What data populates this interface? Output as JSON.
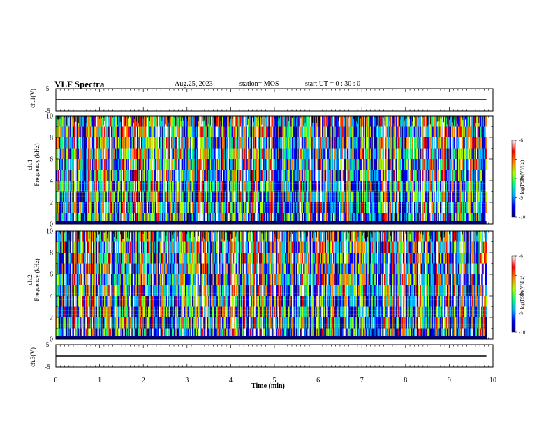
{
  "header": {
    "title": "VLF Spectra",
    "date": "Aug.25, 2023",
    "station": "station= MOS",
    "start_ut": "start  UT =   0 : 30 : 0"
  },
  "colors": {
    "colormap": [
      "#000080",
      "#0000ff",
      "#00b0ff",
      "#00ff80",
      "#b0ff00",
      "#ff8000",
      "#ff0000",
      "#ffffff"
    ],
    "trace": "#000000"
  },
  "chart_data": [
    {
      "type": "line",
      "panel": "ch1-voltage",
      "ylabel": "ch.1(V)",
      "ylim": [
        -5,
        5
      ],
      "yticks": [
        "5",
        "-5"
      ],
      "x": [
        0,
        9.85
      ],
      "values": [
        0,
        0
      ]
    },
    {
      "type": "heatmap",
      "panel": "ch1-spectrogram",
      "ylabel_line1": "ch.1",
      "ylabel_line2": "Frequency (kHz)",
      "ylim": [
        0,
        10
      ],
      "yticks": [
        "0",
        "2",
        "4",
        "6",
        "8",
        "10"
      ],
      "xlim": [
        0,
        10
      ],
      "data_end_min": 9.85,
      "colorbar": {
        "label": "log(PSD)(V²/Hz)",
        "range": [
          -10,
          -6
        ],
        "ticks": [
          "-6",
          "-7",
          "-8",
          "-9",
          "-10"
        ]
      }
    },
    {
      "type": "heatmap",
      "panel": "ch2-spectrogram",
      "ylabel_line1": "ch.2",
      "ylabel_line2": "Frequency (kHz)",
      "ylim": [
        0,
        10
      ],
      "yticks": [
        "0",
        "2",
        "4",
        "6",
        "8",
        "10"
      ],
      "xlim": [
        0,
        10
      ],
      "data_end_min": 9.85,
      "colorbar": {
        "label": "log(PSD)(V²/Hz)",
        "range": [
          -10,
          -6
        ],
        "ticks": [
          "-6",
          "-7",
          "-8",
          "-9",
          "-10"
        ]
      }
    },
    {
      "type": "line",
      "panel": "ch3-voltage",
      "ylabel": "ch.3(V)",
      "ylim": [
        -5,
        5
      ],
      "yticks": [
        "5",
        "-5"
      ],
      "x": [
        0,
        9.85
      ],
      "values": [
        0,
        0
      ]
    }
  ],
  "xaxis": {
    "label": "Time (min)",
    "ticks": [
      "0",
      "1",
      "2",
      "3",
      "4",
      "5",
      "6",
      "7",
      "8",
      "9",
      "10"
    ],
    "range": [
      0,
      10
    ]
  }
}
